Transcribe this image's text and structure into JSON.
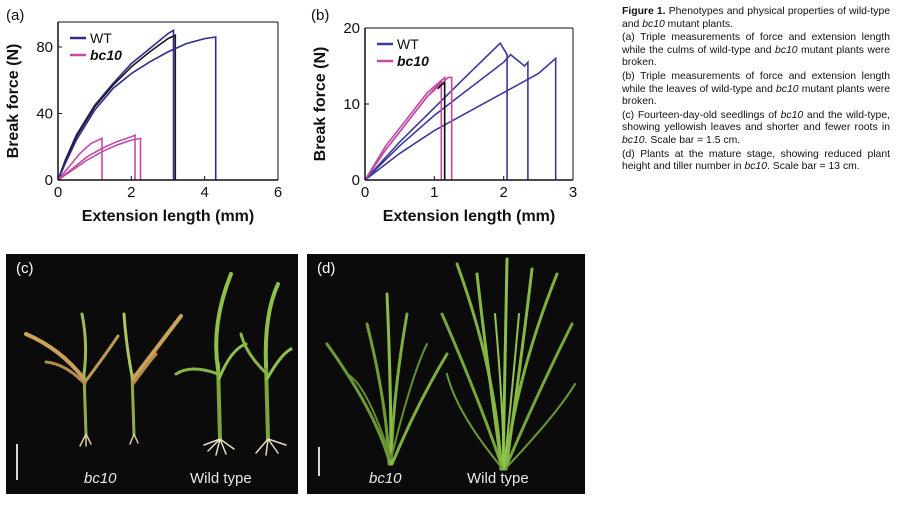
{
  "panel_a": {
    "label": "(a)",
    "chart_data": {
      "type": "line",
      "xlabel": "Extension length (mm)",
      "ylabel": "Break force (N)",
      "xlim": [
        0,
        6
      ],
      "ylim": [
        0,
        95
      ],
      "xticks": [
        "0",
        "2",
        "4",
        "6"
      ],
      "yticks": [
        "0",
        "40",
        "80"
      ],
      "legend": [
        "WT",
        "bc10"
      ],
      "legend_placement": "top-left",
      "grid": false,
      "series": [
        {
          "name": "WT",
          "color": "#2e2d8c",
          "x": [
            0,
            0.2,
            0.5,
            1.0,
            1.5,
            2.0,
            2.5,
            3.0,
            3.15,
            3.15
          ],
          "y": [
            0,
            12,
            27,
            45,
            58,
            70,
            79,
            88,
            90,
            0
          ]
        },
        {
          "name": "WT",
          "color": "#1a1a1a",
          "x": [
            0,
            0.2,
            0.5,
            1.0,
            1.5,
            2.0,
            2.5,
            3.0,
            3.2,
            3.2
          ],
          "y": [
            0,
            11,
            26,
            44,
            57,
            68,
            77,
            85,
            87,
            0
          ]
        },
        {
          "name": "WT",
          "color": "#2e2d8c",
          "x": [
            0,
            0.2,
            0.5,
            1.0,
            1.5,
            2.0,
            2.5,
            3.0,
            3.5,
            4.0,
            4.3,
            4.3
          ],
          "y": [
            0,
            10,
            24,
            42,
            55,
            64,
            71,
            77,
            82,
            85,
            86,
            0
          ]
        },
        {
          "name": "bc10",
          "color": "#c24aa6",
          "x": [
            0,
            0.3,
            0.6,
            0.9,
            1.2,
            1.2
          ],
          "y": [
            0,
            8,
            16,
            22,
            25,
            0
          ]
        },
        {
          "name": "bc10",
          "color": "#c24aa6",
          "x": [
            0,
            0.4,
            0.8,
            1.2,
            1.6,
            2.0,
            2.1,
            2.1
          ],
          "y": [
            0,
            7,
            14,
            19,
            23,
            26,
            27,
            0
          ]
        },
        {
          "name": "bc10",
          "color": "#c24aa6",
          "x": [
            0,
            0.4,
            0.8,
            1.2,
            1.6,
            2.0,
            2.25,
            2.25
          ],
          "y": [
            0,
            6,
            12,
            17,
            21,
            24,
            25,
            0
          ]
        }
      ]
    }
  },
  "panel_b": {
    "label": "(b)",
    "chart_data": {
      "type": "line",
      "xlabel": "Extension length (mm)",
      "ylabel": "Break force (N)",
      "xlim": [
        0,
        3
      ],
      "ylim": [
        0,
        20
      ],
      "xticks": [
        "0",
        "1",
        "2",
        "3"
      ],
      "yticks": [
        "0",
        "10",
        "20"
      ],
      "legend": [
        "WT",
        "bc10"
      ],
      "legend_placement": "top-left",
      "grid": false,
      "series": [
        {
          "name": "WT",
          "color": "#3b3a9c",
          "x": [
            0,
            0.5,
            1.0,
            1.5,
            1.95,
            2.05,
            2.05
          ],
          "y": [
            0,
            5,
            9.5,
            14,
            18,
            16.5,
            0
          ]
        },
        {
          "name": "WT",
          "color": "#3b3a9c",
          "x": [
            0,
            0.5,
            1.0,
            1.5,
            2.0,
            2.1,
            2.3,
            2.35,
            2.35
          ],
          "y": [
            0,
            4.5,
            8.5,
            12,
            15.5,
            16.5,
            15,
            15.5,
            0
          ]
        },
        {
          "name": "WT",
          "color": "#3b3a9c",
          "x": [
            0,
            0.5,
            1.0,
            1.5,
            2.0,
            2.5,
            2.75,
            2.75
          ],
          "y": [
            0,
            3.5,
            6.5,
            9,
            11.5,
            14,
            16,
            0
          ]
        },
        {
          "name": "bc10",
          "color": "#c24aa6",
          "x": [
            0,
            0.3,
            0.6,
            0.9,
            1.1,
            1.1
          ],
          "y": [
            0,
            4,
            7.5,
            11,
            13,
            0
          ]
        },
        {
          "name": "bc10",
          "color": "#c24aa6",
          "x": [
            0,
            0.3,
            0.6,
            0.9,
            1.15,
            1.15
          ],
          "y": [
            0,
            4.5,
            8,
            11.5,
            13.5,
            0
          ]
        },
        {
          "name": "bc10",
          "color": "#c24aa6",
          "x": [
            0,
            0.3,
            0.6,
            0.9,
            1.2,
            1.25,
            1.25
          ],
          "y": [
            0,
            4,
            7.5,
            11,
            13.5,
            13.5,
            0
          ]
        },
        {
          "name": "bc10",
          "color": "#111111",
          "x": [
            1.05,
            1.1,
            1.15,
            1.15
          ],
          "y": [
            12,
            12.5,
            12.8,
            0
          ]
        }
      ]
    }
  },
  "caption": {
    "title": "Figure 1.",
    "title_rest": "Phenotypes and physical properties of wild-type and ",
    "title_italic": "bc10",
    "title_tail": " mutant plants.",
    "a": "(a) Triple measurements of force and extension length while the culms of wild-type and ",
    "a_italic": "bc10",
    "a_tail": " mutant plants were broken.",
    "b": "(b) Triple measurements of force and extension length while the leaves of wild-type and ",
    "b_italic": "bc10",
    "b_tail": " mutant plants were broken.",
    "c1": "(c) Fourteen-day-old seedlings of ",
    "c_italic1": "bc10",
    "c2": " and the wild-type, showing yellowish leaves and shorter and fewer roots in ",
    "c_italic2": "bc10",
    "c3": ". Scale bar = 1.5 cm.",
    "d1": "(d) Plants at the mature stage, showing reduced plant height and tiller number in ",
    "d_italic": "bc10",
    "d2": ". Scale bar = 13 cm."
  },
  "panel_c": {
    "label": "(c)",
    "mutant_label": "bc10",
    "wildtype_label": "Wild type"
  },
  "panel_d": {
    "label": "(d)",
    "mutant_label": "bc10",
    "wildtype_label": "Wild type"
  }
}
